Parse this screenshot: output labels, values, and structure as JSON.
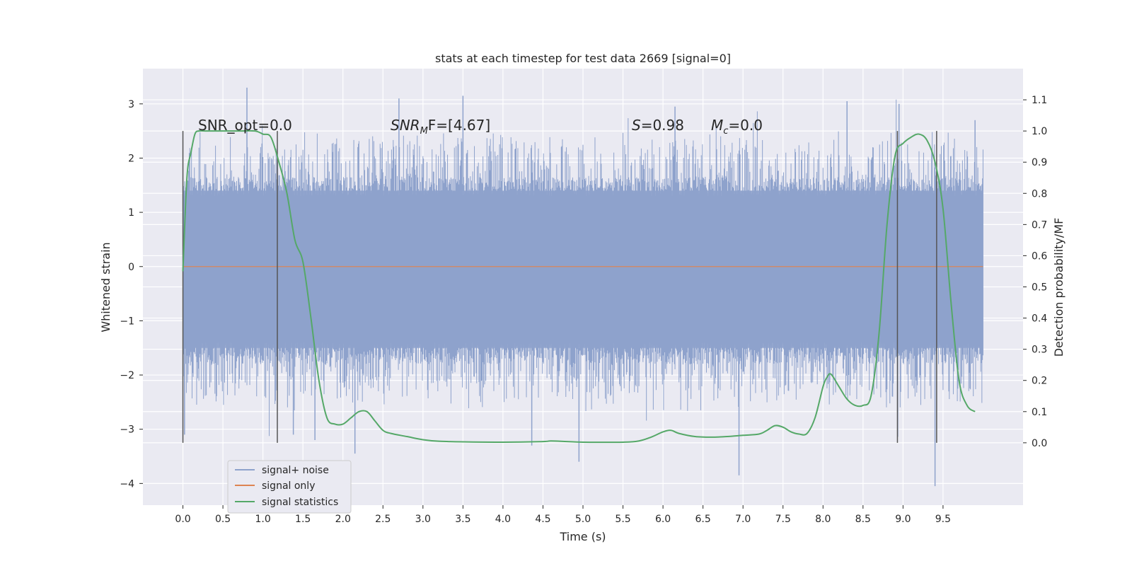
{
  "chart_data": {
    "type": "line",
    "title": "stats at each timestep for test data 2669 [signal=0]",
    "xlabel": "Time (s)",
    "ylabel": "Whitened strain",
    "y2label": "Detection probability/MF",
    "xlim": [
      -0.5,
      10.5
    ],
    "ylim": [
      -4.4,
      3.65
    ],
    "y2lim": [
      -0.2,
      1.2
    ],
    "x_ticks": [
      "0.0",
      "0.5",
      "1.0",
      "1.5",
      "2.0",
      "2.5",
      "3.0",
      "3.5",
      "4.0",
      "4.5",
      "5.0",
      "5.5",
      "6.0",
      "6.5",
      "7.0",
      "7.5",
      "8.0",
      "8.5",
      "9.0",
      "9.5"
    ],
    "y_ticks": [
      "3",
      "2",
      "1",
      "0",
      "−1",
      "−2",
      "−3",
      "−4"
    ],
    "y2_ticks": [
      "1.1",
      "1.0",
      "0.9",
      "0.8",
      "0.7",
      "0.6",
      "0.5",
      "0.4",
      "0.3",
      "0.2",
      "0.1",
      "0.0"
    ],
    "grid": true,
    "legend_position": "lower-left",
    "annotations": {
      "snr_opt": "SNR_opt=0.0",
      "snr_mf_prefix": "SNR",
      "snr_mf_sub": "M",
      "snr_mf_suffix": "F=[4.67]",
      "s_prefix": "S",
      "s_suffix": "=0.98",
      "mc_prefix": "M",
      "mc_sub": "c",
      "mc_suffix": "=0.0"
    },
    "vertical_markers": [
      0.0,
      1.18,
      8.93,
      9.42
    ],
    "series": [
      {
        "name": "signal+ noise",
        "color": "#8ea2cc",
        "x_range": [
          0.0,
          10.0
        ],
        "typical_amplitude": [
          -1.5,
          1.4
        ],
        "peak_range": [
          -4.1,
          3.3
        ],
        "peaks": [
          {
            "x": 0.02,
            "y": -3.1
          },
          {
            "x": 0.8,
            "y": 3.3
          },
          {
            "x": 1.38,
            "y": -3.1
          },
          {
            "x": 1.65,
            "y": -3.2
          },
          {
            "x": 2.15,
            "y": -3.45
          },
          {
            "x": 2.7,
            "y": 3.1
          },
          {
            "x": 3.5,
            "y": 3.15
          },
          {
            "x": 4.36,
            "y": -3.3
          },
          {
            "x": 4.95,
            "y": -3.6
          },
          {
            "x": 6.15,
            "y": 2.95
          },
          {
            "x": 6.95,
            "y": -3.85
          },
          {
            "x": 8.3,
            "y": 3.05
          },
          {
            "x": 8.95,
            "y": 3.0
          },
          {
            "x": 9.4,
            "y": -4.05
          },
          {
            "x": 9.9,
            "y": 2.7
          }
        ]
      },
      {
        "name": "signal only",
        "color": "#dd8452",
        "x": [
          0.0,
          10.0
        ],
        "y": [
          0.0,
          0.0
        ]
      },
      {
        "name": "signal statistics",
        "color": "#55a868",
        "axis": "right",
        "x": [
          0.0,
          0.05,
          0.1,
          0.15,
          0.2,
          0.3,
          0.5,
          0.7,
          0.9,
          1.0,
          1.1,
          1.2,
          1.3,
          1.4,
          1.5,
          1.6,
          1.7,
          1.8,
          1.9,
          2.0,
          2.1,
          2.2,
          2.3,
          2.4,
          2.5,
          2.6,
          2.8,
          3.0,
          3.2,
          3.5,
          4.0,
          4.5,
          4.6,
          4.8,
          5.0,
          5.5,
          5.7,
          5.85,
          6.0,
          6.1,
          6.2,
          6.4,
          6.6,
          6.8,
          7.0,
          7.2,
          7.3,
          7.4,
          7.5,
          7.6,
          7.7,
          7.8,
          7.9,
          8.0,
          8.05,
          8.1,
          8.2,
          8.3,
          8.4,
          8.5,
          8.6,
          8.7,
          8.8,
          8.9,
          9.0,
          9.1,
          9.2,
          9.3,
          9.4,
          9.5,
          9.6,
          9.7,
          9.8,
          9.9
        ],
        "y": [
          0.55,
          0.85,
          0.93,
          0.99,
          1.0,
          1.0,
          1.0,
          1.0,
          1.0,
          0.99,
          0.98,
          0.9,
          0.8,
          0.65,
          0.58,
          0.4,
          0.2,
          0.08,
          0.06,
          0.06,
          0.08,
          0.1,
          0.1,
          0.07,
          0.04,
          0.03,
          0.02,
          0.01,
          0.005,
          0.003,
          0.002,
          0.004,
          0.006,
          0.004,
          0.002,
          0.002,
          0.006,
          0.018,
          0.035,
          0.04,
          0.03,
          0.02,
          0.018,
          0.02,
          0.024,
          0.028,
          0.04,
          0.055,
          0.05,
          0.035,
          0.028,
          0.03,
          0.08,
          0.18,
          0.21,
          0.22,
          0.18,
          0.14,
          0.12,
          0.12,
          0.15,
          0.35,
          0.7,
          0.92,
          0.96,
          0.98,
          0.99,
          0.97,
          0.9,
          0.75,
          0.45,
          0.2,
          0.12,
          0.1
        ]
      }
    ]
  }
}
